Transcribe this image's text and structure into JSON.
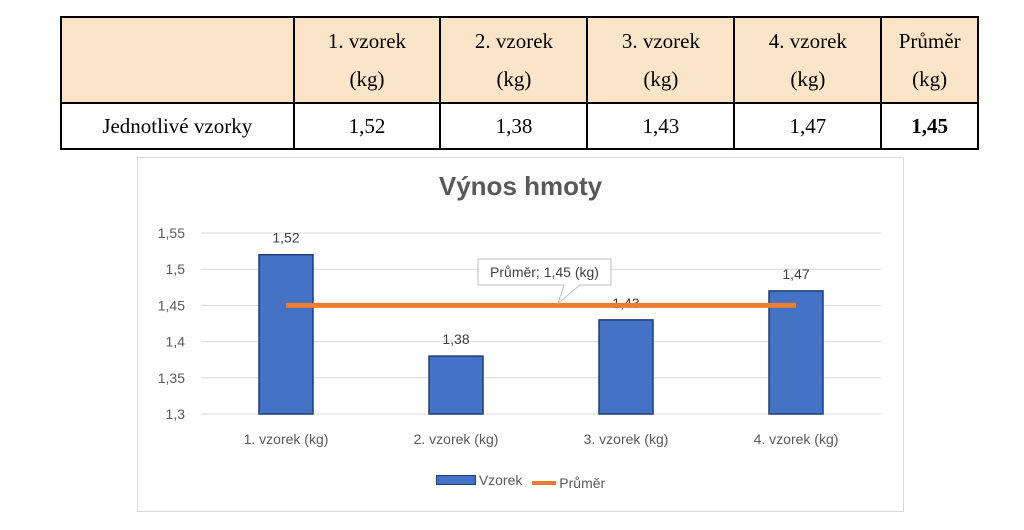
{
  "table": {
    "headers": [
      {
        "line1": "",
        "line2": ""
      },
      {
        "line1": "1. vzorek",
        "line2": "(kg)"
      },
      {
        "line1": "2. vzorek",
        "line2": "(kg)"
      },
      {
        "line1": "3. vzorek",
        "line2": "(kg)"
      },
      {
        "line1": "4. vzorek",
        "line2": "(kg)"
      },
      {
        "line1": "Průměr",
        "line2": "(kg)"
      }
    ],
    "row_label": "Jednotlivé vzorky",
    "values": [
      "1,52",
      "1,38",
      "1,43",
      "1,47"
    ],
    "average": "1,45",
    "header_bg": "#fbe5c8"
  },
  "chart_data": {
    "type": "bar",
    "title": "Výnos hmoty",
    "categories": [
      "1. vzorek (kg)",
      "2. vzorek (kg)",
      "3. vzorek (kg)",
      "4. vzorek (kg)"
    ],
    "series": [
      {
        "name": "Vzorek",
        "type": "bar",
        "values": [
          1.52,
          1.38,
          1.43,
          1.47
        ],
        "labels": [
          "1,52",
          "1,38",
          "1,43",
          "1,47"
        ],
        "color": "#4472c4"
      },
      {
        "name": "Průměr",
        "type": "line",
        "values": [
          1.45,
          1.45,
          1.45,
          1.45
        ],
        "color": "#ed7d31"
      }
    ],
    "ylim": [
      1.3,
      1.55
    ],
    "yticks": [
      1.3,
      1.35,
      1.4,
      1.45,
      1.5,
      1.55
    ],
    "ytick_labels": [
      "1,3",
      "1,35",
      "1,4",
      "1,45",
      "1,5",
      "1,55"
    ],
    "annotation": "Průměr; 1,45 (kg)",
    "grid": true,
    "legend_position": "bottom"
  }
}
